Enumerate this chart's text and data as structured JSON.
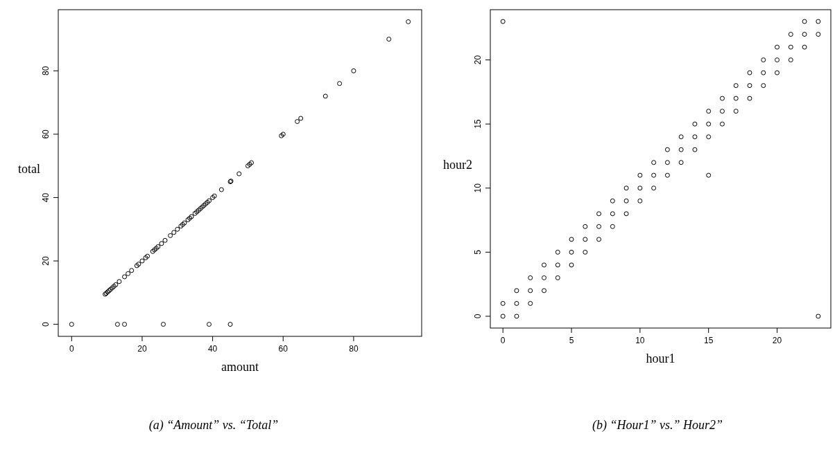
{
  "chart_data": [
    {
      "type": "scatter",
      "xlabel": "amount",
      "ylabel": "total",
      "annotations": [
        "(a) “Amount” vs. “Total”"
      ],
      "xlim": [
        -3.8,
        99.3
      ],
      "ylim": [
        -3.8,
        99.3
      ],
      "xticks": [
        0,
        20,
        40,
        60,
        80
      ],
      "yticks": [
        0,
        20,
        40,
        60,
        80
      ],
      "marker": "circle",
      "series": [
        {
          "color": "#000000",
          "x": [
            0,
            13,
            15,
            26,
            39,
            45,
            9.5,
            9.8,
            10.2,
            10.6,
            11,
            11.5,
            12,
            12.5,
            13.5,
            15,
            16,
            17,
            18.5,
            19,
            20,
            21,
            21.5,
            23,
            23.5,
            24,
            24.5,
            25.5,
            26.5,
            28,
            29,
            30,
            31,
            31.5,
            32,
            33,
            33.5,
            34,
            35,
            35.5,
            36,
            36.5,
            37,
            37.5,
            38,
            38.5,
            39,
            40,
            40.5,
            42.5,
            45,
            45.2,
            47.5,
            50,
            50.5,
            51,
            59.5,
            60,
            64,
            65,
            72,
            76,
            80,
            90,
            95.5
          ],
          "values": [
            0,
            0,
            0,
            0,
            0,
            0,
            9.5,
            9.8,
            10.2,
            10.6,
            11,
            11.5,
            12,
            12.5,
            13.5,
            15,
            16,
            17,
            18.5,
            19,
            20,
            21,
            21.5,
            23,
            23.5,
            24,
            24.5,
            25.5,
            26.5,
            28,
            29,
            30,
            31,
            31.5,
            32,
            33,
            33.5,
            34,
            35,
            35.5,
            36,
            36.5,
            37,
            37.5,
            38,
            38.5,
            39,
            40,
            40.5,
            42.5,
            45,
            45.2,
            47.5,
            50,
            50.5,
            51,
            59.5,
            60,
            64,
            65,
            72,
            76,
            80,
            90,
            95.5
          ]
        }
      ]
    },
    {
      "type": "scatter",
      "xlabel": "hour1",
      "ylabel": "hour2",
      "annotations": [
        "(b) “Hour1” vs.” Hour2”"
      ],
      "xlim": [
        -0.92,
        23.92
      ],
      "ylim": [
        -0.92,
        23.92
      ],
      "xticks": [
        0,
        5,
        10,
        15,
        20
      ],
      "yticks": [
        0,
        5,
        10,
        15,
        20
      ],
      "marker": "circle",
      "series": [
        {
          "color": "#000000",
          "x": [
            0,
            0,
            0,
            1,
            1,
            1,
            2,
            2,
            2,
            3,
            3,
            3,
            4,
            4,
            4,
            5,
            5,
            5,
            6,
            6,
            6,
            7,
            7,
            7,
            8,
            8,
            8,
            9,
            9,
            9,
            10,
            10,
            10,
            11,
            11,
            11,
            12,
            12,
            12,
            13,
            13,
            13,
            14,
            14,
            14,
            15,
            15,
            15,
            15,
            16,
            16,
            16,
            17,
            17,
            17,
            18,
            18,
            18,
            19,
            19,
            19,
            20,
            20,
            20,
            21,
            21,
            21,
            22,
            22,
            22,
            23,
            23,
            23
          ],
          "values": [
            0,
            1,
            23,
            0,
            1,
            2,
            1,
            2,
            3,
            2,
            3,
            4,
            3,
            4,
            5,
            4,
            5,
            6,
            5,
            6,
            7,
            6,
            7,
            8,
            7,
            8,
            9,
            8,
            9,
            10,
            9,
            10,
            11,
            10,
            11,
            12,
            11,
            12,
            13,
            12,
            13,
            14,
            13,
            14,
            15,
            11,
            14,
            15,
            16,
            15,
            16,
            17,
            16,
            17,
            18,
            17,
            18,
            19,
            18,
            19,
            20,
            19,
            20,
            21,
            20,
            21,
            22,
            21,
            22,
            23,
            0,
            22,
            23
          ]
        }
      ]
    }
  ]
}
